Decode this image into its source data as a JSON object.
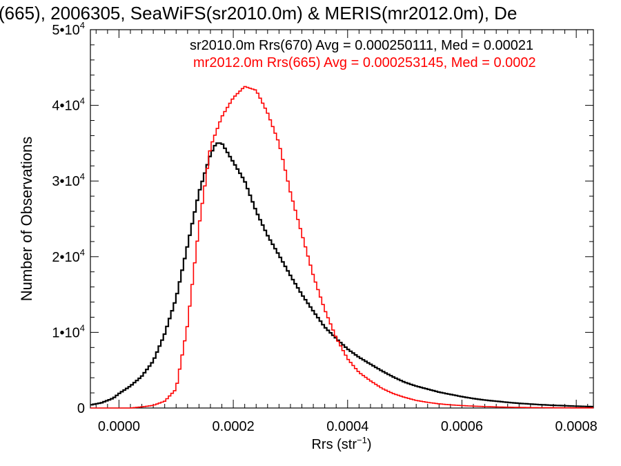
{
  "chart_data": {
    "type": "line",
    "title": "(665), 2006305, SeaWiFS(sr2010.0m) & MERIS(mr2012.0m), De",
    "xlabel": "Rrs (str",
    "xlabel_sup": "−1",
    "xlabel_close": ")",
    "ylabel": "Number of Observations",
    "xlim": [
      -5e-05,
      0.00083
    ],
    "ylim": [
      0,
      50000
    ],
    "x_ticks": [
      0.0,
      0.0002,
      0.0004,
      0.0006,
      0.0008
    ],
    "x_tick_labels": [
      "0.0000",
      "0.0002",
      "0.0004",
      "0.0006",
      "0.0008"
    ],
    "y_ticks": [
      0,
      10000,
      20000,
      30000,
      40000,
      50000
    ],
    "y_tick_labels": [
      {
        "base": "0",
        "exp": ""
      },
      {
        "base": "1•10",
        "exp": "4"
      },
      {
        "base": "2•10",
        "exp": "4"
      },
      {
        "base": "3•10",
        "exp": "4"
      },
      {
        "base": "4•10",
        "exp": "4"
      },
      {
        "base": "5•10",
        "exp": "4"
      }
    ],
    "grid": false,
    "plot_style": "step",
    "legend_position": "top-right",
    "series": [
      {
        "name": "sr2010.0m Rrs(670) Avg = 0.000250111, Med = 0.00021",
        "color": "#000000",
        "points": [
          [
            -5e-05,
            400
          ],
          [
            -3e-05,
            700
          ],
          [
            -1e-05,
            1300
          ],
          [
            0.0,
            1900
          ],
          [
            2e-05,
            2900
          ],
          [
            4e-05,
            4200
          ],
          [
            6e-05,
            6200
          ],
          [
            8e-05,
            9800
          ],
          [
            0.0001,
            14500
          ],
          [
            0.00012,
            21500
          ],
          [
            0.00014,
            28500
          ],
          [
            0.00016,
            33500
          ],
          [
            0.00017,
            35000
          ],
          [
            0.00018,
            35000
          ],
          [
            0.0002,
            32500
          ],
          [
            0.00022,
            30000
          ],
          [
            0.00024,
            26000
          ],
          [
            0.00026,
            22800
          ],
          [
            0.00028,
            20200
          ],
          [
            0.0003,
            17500
          ],
          [
            0.00032,
            15000
          ],
          [
            0.00034,
            12800
          ],
          [
            0.00036,
            10700
          ],
          [
            0.00038,
            9200
          ],
          [
            0.0004,
            7800
          ],
          [
            0.00042,
            6700
          ],
          [
            0.00044,
            5800
          ],
          [
            0.00046,
            4900
          ],
          [
            0.00048,
            4100
          ],
          [
            0.0005,
            3400
          ],
          [
            0.00052,
            2900
          ],
          [
            0.00054,
            2500
          ],
          [
            0.00056,
            2100
          ],
          [
            0.00058,
            1800
          ],
          [
            0.0006,
            1500
          ],
          [
            0.00062,
            1250
          ],
          [
            0.00064,
            1050
          ],
          [
            0.00066,
            900
          ],
          [
            0.00068,
            750
          ],
          [
            0.0007,
            620
          ],
          [
            0.00072,
            520
          ],
          [
            0.00074,
            430
          ],
          [
            0.00076,
            360
          ],
          [
            0.00078,
            300
          ],
          [
            0.0008,
            240
          ],
          [
            0.00083,
            180
          ]
        ]
      },
      {
        "name": "mr2012.0m Rrs(665) Avg = 0.000253145, Med = 0.0002",
        "color": "#ff0000",
        "points": [
          [
            -5e-05,
            0
          ],
          [
            2e-05,
            0
          ],
          [
            4e-05,
            150
          ],
          [
            6e-05,
            350
          ],
          [
            8e-05,
            900
          ],
          [
            0.0001,
            2500
          ],
          [
            0.00012,
            11000
          ],
          [
            0.00014,
            24000
          ],
          [
            0.00016,
            34500
          ],
          [
            0.00018,
            38500
          ],
          [
            0.0002,
            41000
          ],
          [
            0.00022,
            42500
          ],
          [
            0.00024,
            42000
          ],
          [
            0.00026,
            39000
          ],
          [
            0.00028,
            35000
          ],
          [
            0.0003,
            28500
          ],
          [
            0.00032,
            23000
          ],
          [
            0.00034,
            17500
          ],
          [
            0.00036,
            13000
          ],
          [
            0.00038,
            9300
          ],
          [
            0.0004,
            6500
          ],
          [
            0.00042,
            4700
          ],
          [
            0.00044,
            3600
          ],
          [
            0.00046,
            2600
          ],
          [
            0.00048,
            1900
          ],
          [
            0.0005,
            1400
          ],
          [
            0.00052,
            1000
          ],
          [
            0.00054,
            750
          ],
          [
            0.00056,
            550
          ],
          [
            0.00058,
            420
          ],
          [
            0.0006,
            320
          ],
          [
            0.00062,
            250
          ],
          [
            0.00064,
            190
          ],
          [
            0.00066,
            150
          ],
          [
            0.00068,
            110
          ],
          [
            0.0007,
            80
          ],
          [
            0.00072,
            60
          ],
          [
            0.00074,
            45
          ],
          [
            0.00076,
            30
          ],
          [
            0.00078,
            25
          ],
          [
            0.0008,
            20
          ],
          [
            0.00083,
            15
          ]
        ]
      }
    ]
  }
}
